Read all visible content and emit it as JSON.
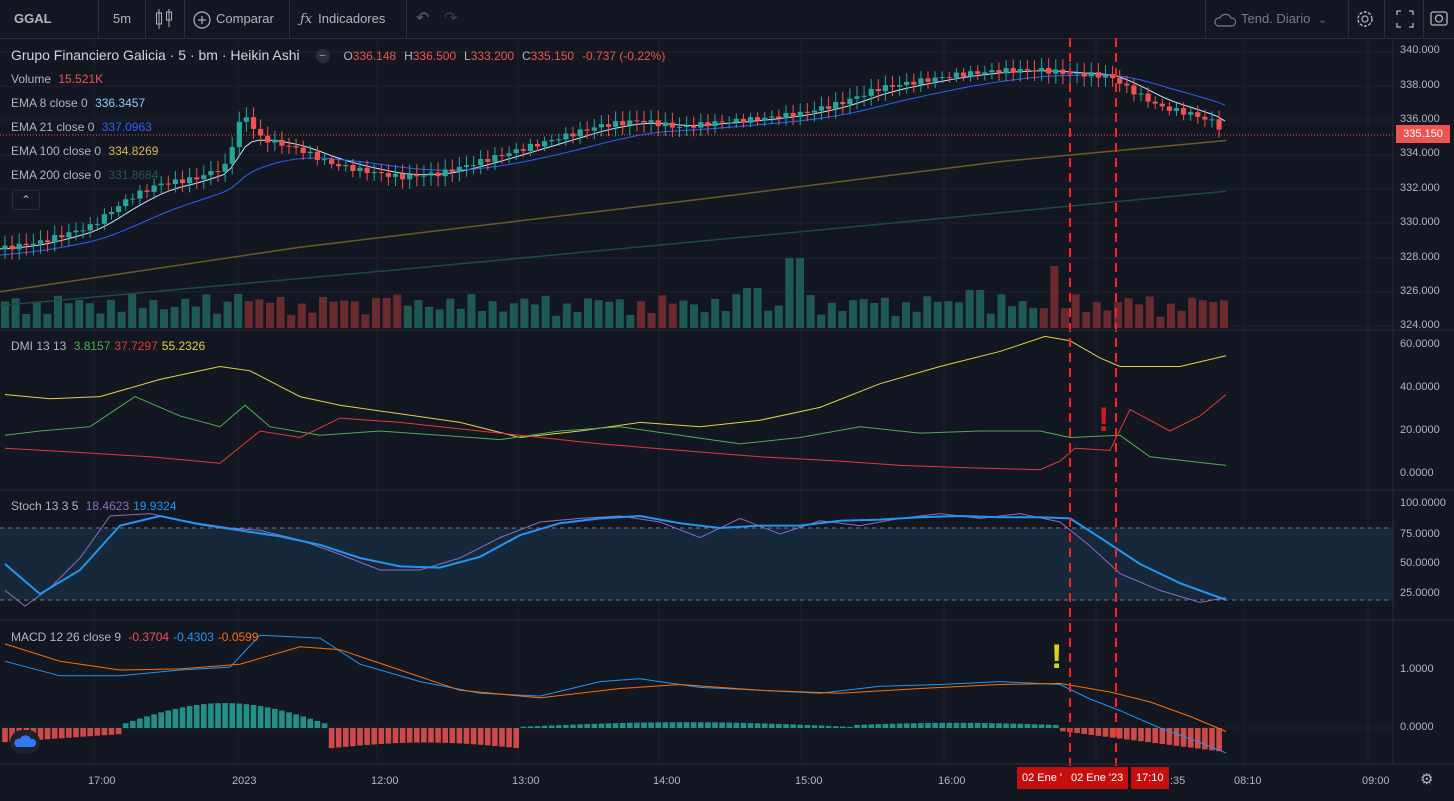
{
  "toolbar": {
    "symbol": "GGAL",
    "interval": "5m",
    "compare": "Comparar",
    "indicators": "Indicadores",
    "trend": "Tend. Diario",
    "icons": [
      "plus-circle-icon",
      "fx-icon",
      "candles-icon",
      "undo-icon",
      "redo-icon",
      "cloud-icon",
      "gear-icon",
      "fullscreen-icon",
      "camera-icon"
    ]
  },
  "legend": {
    "title": "Grupo Financiero Galicia · 5 · bm · Heikin Ashi",
    "o_label": "O",
    "o": "336.148",
    "h_label": "H",
    "h": "336.500",
    "l_label": "L",
    "l": "333.200",
    "c_label": "C",
    "c": "335.150",
    "change": "-0.737 (-0.22%)",
    "volume_label": "Volume",
    "volume": "15.521K",
    "ema8_label": "EMA 8 close 0",
    "ema8": "336.3457",
    "ema21_label": "EMA 21 close 0",
    "ema21": "337.0963",
    "ema100_label": "EMA 100 close 0",
    "ema100": "334.8269",
    "ema200_label": "EMA 200 close 0",
    "ema200": "331.8684",
    "dmi_label": "DMI 13 13",
    "dmi_plus": "3.8157",
    "dmi_minus": "37.7297",
    "adx": "55.2326",
    "stoch_label": "Stoch 13 3 5",
    "stoch_k": "18.4623",
    "stoch_d": "19.9324",
    "macd_label": "MACD 12 26 close 9",
    "macd_hist": "-0.3704",
    "macd": "-0.4303",
    "macd_signal": "-0.0599"
  },
  "price_axis": {
    "labels": [
      "340.000",
      "338.000",
      "336.000",
      "334.000",
      "332.000",
      "330.000",
      "328.000",
      "326.000",
      "324.000"
    ],
    "current_price": "335.150"
  },
  "dmi_axis": [
    "60.0000",
    "40.0000",
    "20.0000",
    "0.0000"
  ],
  "stoch_axis": [
    "100.0000",
    "75.0000",
    "50.0000",
    "25.0000"
  ],
  "macd_axis": [
    "1.0000",
    "0.0000"
  ],
  "time_axis": [
    "17:00",
    "2023",
    "12:00",
    "13:00",
    "14:00",
    "15:00",
    "16:00",
    ":35",
    "08:10",
    "09:00"
  ],
  "cursor_labels": [
    "02 Ene '",
    "02 Ene '23",
    "17:10"
  ],
  "alerts": [
    "!",
    "!"
  ],
  "colors": {
    "bg": "#131722",
    "up": "#26a69a",
    "down": "#ef5350",
    "ema8": "#d0e4ff",
    "ema21": "#2962ff",
    "ema100": "#6b5a2a",
    "ema200": "#1f4a42",
    "dmi_plus": "#4caf50",
    "dmi_minus": "#e53935",
    "adx": "#e6d04a",
    "stoch_k": "#8e6bbf",
    "stoch_d": "#2196f3",
    "macd": "#2196f3",
    "signal": "#ff6d00",
    "cursor": "#ff1f1f"
  }
}
